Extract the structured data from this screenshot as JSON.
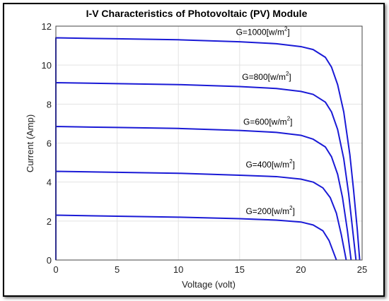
{
  "chart_data": {
    "type": "line",
    "title": "I-V Characteristics of Photovoltaic (PV) Module",
    "xlabel": "Voltage (volt)",
    "ylabel": "Current (Amp)",
    "xlim": [
      0,
      25
    ],
    "ylim": [
      0,
      12
    ],
    "xticks": [
      "0",
      "5",
      "10",
      "15",
      "20",
      "25"
    ],
    "yticks": [
      "0",
      "2",
      "4",
      "6",
      "8",
      "10",
      "12"
    ],
    "grid": true,
    "line_color": "#1a1ad6",
    "series": [
      {
        "name": "G=1000[w/m2]",
        "label_prefix": "G=1000[w/m",
        "label_sup": "2",
        "label_suffix": "]",
        "x": [
          0,
          5,
          10,
          15,
          18,
          20,
          21,
          22,
          22.5,
          23,
          23.5,
          24,
          24.3,
          24.6,
          24.8
        ],
        "y": [
          11.4,
          11.35,
          11.3,
          11.2,
          11.1,
          10.95,
          10.8,
          10.4,
          9.9,
          9.0,
          7.6,
          5.4,
          3.6,
          1.6,
          0
        ]
      },
      {
        "name": "G=800[w/m2]",
        "label_prefix": "G=800[w/m",
        "label_sup": "2",
        "label_suffix": "]",
        "x": [
          0,
          5,
          10,
          15,
          18,
          20,
          21,
          22,
          22.5,
          23,
          23.5,
          23.9,
          24.2,
          24.5
        ],
        "y": [
          9.1,
          9.05,
          9.0,
          8.9,
          8.8,
          8.65,
          8.5,
          8.1,
          7.6,
          6.7,
          5.2,
          3.4,
          1.7,
          0
        ]
      },
      {
        "name": "G=600[w/m2]",
        "label_prefix": "G=600[w/m",
        "label_sup": "2",
        "label_suffix": "]",
        "x": [
          0,
          5,
          10,
          15,
          18,
          20,
          21,
          22,
          22.5,
          23,
          23.4,
          23.8,
          24.1
        ],
        "y": [
          6.85,
          6.8,
          6.75,
          6.65,
          6.55,
          6.4,
          6.2,
          5.8,
          5.3,
          4.4,
          3.2,
          1.5,
          0
        ]
      },
      {
        "name": "G=400[w/m2]",
        "label_prefix": "G=400[w/m",
        "label_sup": "2",
        "label_suffix": "]",
        "x": [
          0,
          5,
          10,
          15,
          18,
          20,
          21,
          21.8,
          22.4,
          22.9,
          23.3,
          23.7
        ],
        "y": [
          4.55,
          4.5,
          4.45,
          4.35,
          4.28,
          4.15,
          4.0,
          3.7,
          3.2,
          2.4,
          1.3,
          0
        ]
      },
      {
        "name": "G=200[w/m2]",
        "label_prefix": "G=200[w/m",
        "label_sup": "2",
        "label_suffix": "]",
        "x": [
          0,
          5,
          10,
          15,
          18,
          20,
          21,
          21.8,
          22.3,
          22.6,
          22.9
        ],
        "y": [
          2.3,
          2.25,
          2.2,
          2.12,
          2.05,
          1.95,
          1.8,
          1.5,
          1.0,
          0.5,
          0
        ]
      }
    ],
    "label_positions": [
      {
        "x": 14.7,
        "y": 11.55
      },
      {
        "x": 15.2,
        "y": 9.25
      },
      {
        "x": 15.3,
        "y": 6.95
      },
      {
        "x": 15.5,
        "y": 4.75
      },
      {
        "x": 15.5,
        "y": 2.35
      }
    ]
  }
}
